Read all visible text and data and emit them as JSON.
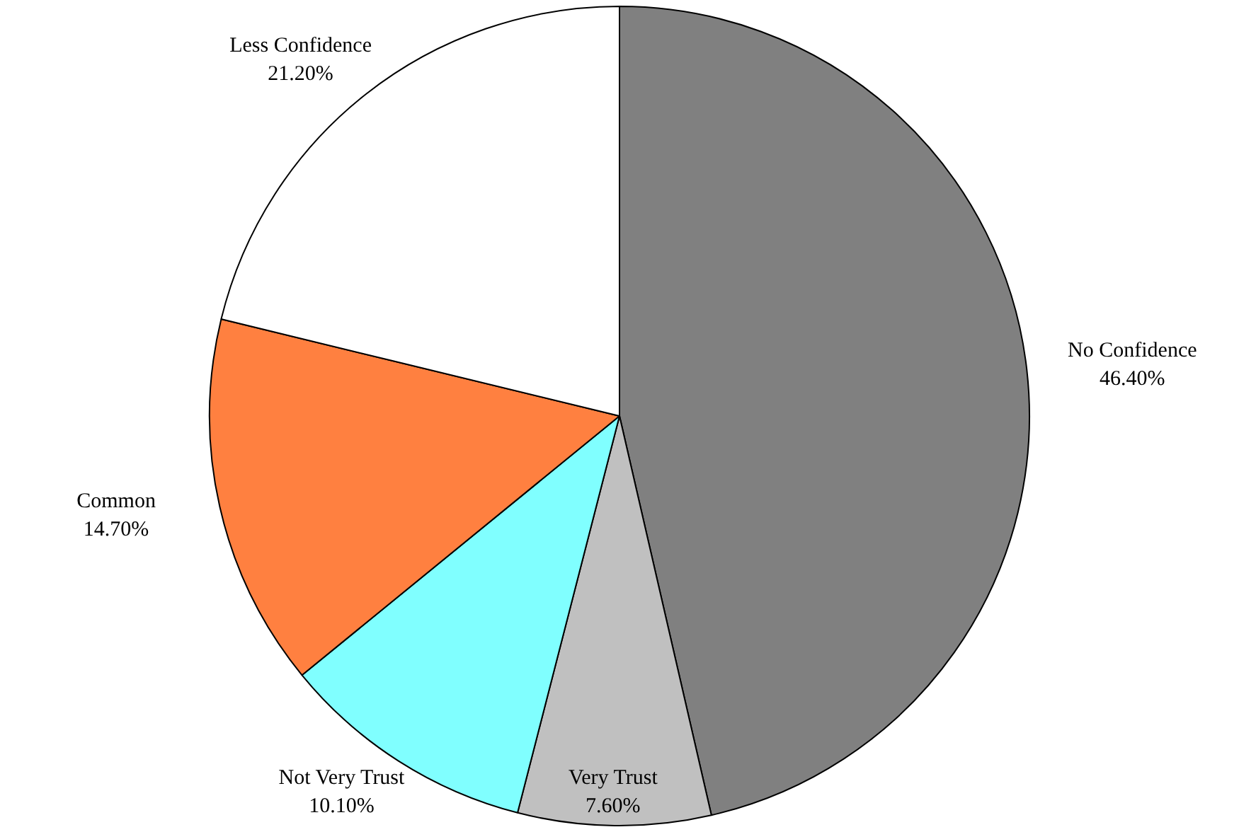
{
  "chart_data": {
    "type": "pie",
    "categories": [
      "No Confidence",
      "Very Trust",
      "Not Very Trust",
      "Common",
      "Less Confidence"
    ],
    "values": [
      46.4,
      7.6,
      10.1,
      14.7,
      21.2
    ],
    "value_labels": [
      "46.40%",
      "7.60%",
      "10.10%",
      "14.70%",
      "21.20%"
    ],
    "colors": [
      "#808080",
      "#c0c0c0",
      "#80ffff",
      "#ff8040",
      "#ffffff"
    ],
    "legend": false
  }
}
